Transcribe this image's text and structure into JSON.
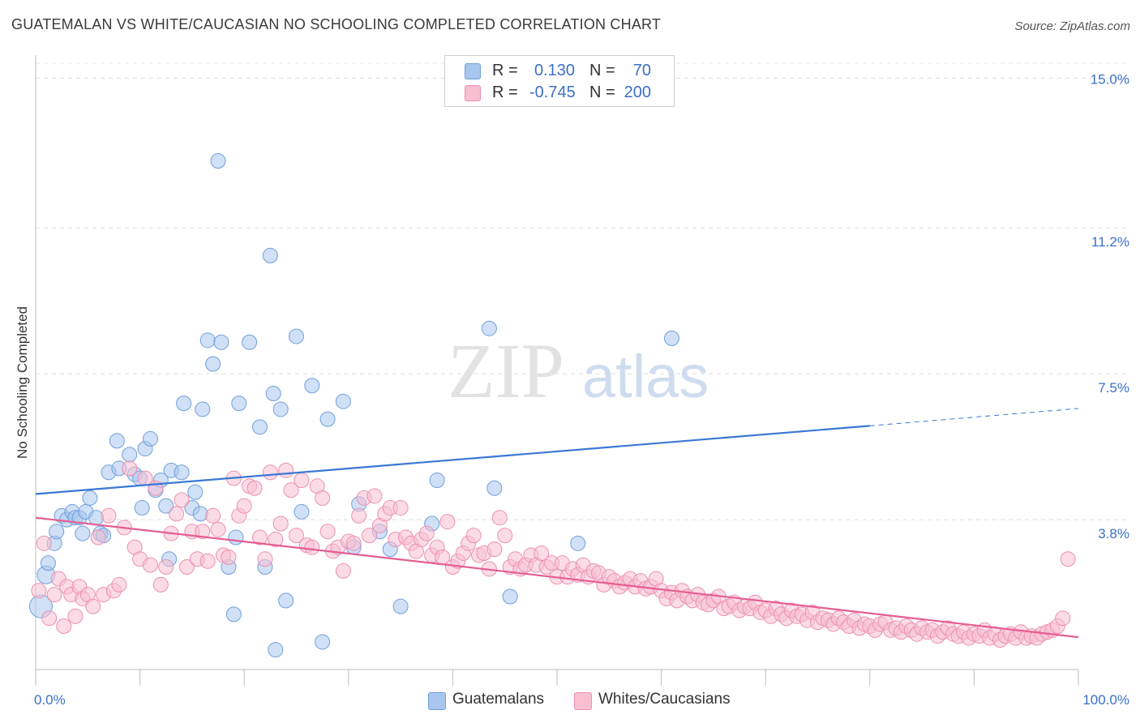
{
  "title": "GUATEMALAN VS WHITE/CAUCASIAN NO SCHOOLING COMPLETED CORRELATION CHART",
  "source": "Source: ZipAtlas.com",
  "watermark": {
    "zip": "ZIP",
    "atlas": "atlas"
  },
  "legend": {
    "rows": [
      {
        "r_label": "R =",
        "r_value": "0.130",
        "n_label": "N =",
        "n_value": "70",
        "color": "#a9c6ef",
        "border": "#6f9fdc"
      },
      {
        "r_label": "R =",
        "r_value": "-0.745",
        "n_label": "N =",
        "n_value": "200",
        "color": "#f8bfd1",
        "border": "#ec8fb0"
      }
    ]
  },
  "bottom_legend": [
    {
      "label": "Guatemalans",
      "color": "#a9c6ef",
      "border": "#6f9fdc"
    },
    {
      "label": "Whites/Caucasians",
      "color": "#f8bfd1",
      "border": "#ec8fb0"
    }
  ],
  "chart_data": {
    "type": "scatter",
    "title": "GUATEMALAN VS WHITE/CAUCASIAN NO SCHOOLING COMPLETED CORRELATION CHART",
    "xlabel": "",
    "ylabel": "No Schooling Completed",
    "xlim": [
      0,
      100
    ],
    "ylim": [
      0,
      15.5
    ],
    "x_tick_labels": [
      "0.0%",
      "100.0%"
    ],
    "y_ticks": [
      3.8,
      7.5,
      11.2,
      15.0
    ],
    "y_tick_labels": [
      "3.8%",
      "7.5%",
      "11.2%",
      "15.0%"
    ],
    "grid": true,
    "legend_position": "top-center",
    "series": [
      {
        "name": "Guatemalans",
        "color": "#a9c6ef",
        "stroke": "#6f9fdc",
        "line_color": "#3a78d4",
        "trend": {
          "x0": 0,
          "y0": 4.45,
          "x1": 80,
          "y1": 6.18,
          "dash_to_x": 100,
          "dash_to_y": 6.62
        },
        "points": [
          [
            0.5,
            1.6
          ],
          [
            1,
            2.4
          ],
          [
            1.2,
            2.7
          ],
          [
            1.8,
            3.2
          ],
          [
            2,
            3.5
          ],
          [
            2.5,
            3.9
          ],
          [
            3,
            3.8
          ],
          [
            3.5,
            4.0
          ],
          [
            3.8,
            3.85
          ],
          [
            4.2,
            3.85
          ],
          [
            4.5,
            3.45
          ],
          [
            4.8,
            4.0
          ],
          [
            5.2,
            4.35
          ],
          [
            5.8,
            3.85
          ],
          [
            6.2,
            3.45
          ],
          [
            6.5,
            3.4
          ],
          [
            7,
            5.0
          ],
          [
            7.8,
            5.8
          ],
          [
            8,
            5.1
          ],
          [
            9,
            5.45
          ],
          [
            9.5,
            4.95
          ],
          [
            10,
            4.85
          ],
          [
            10.2,
            4.1
          ],
          [
            10.5,
            5.6
          ],
          [
            11,
            5.85
          ],
          [
            11.5,
            4.55
          ],
          [
            12,
            4.8
          ],
          [
            12.5,
            4.15
          ],
          [
            12.8,
            2.8
          ],
          [
            13,
            5.05
          ],
          [
            14,
            5.0
          ],
          [
            14.2,
            6.75
          ],
          [
            15,
            4.1
          ],
          [
            15.3,
            4.5
          ],
          [
            15.8,
            3.95
          ],
          [
            16,
            6.6
          ],
          [
            16.5,
            8.35
          ],
          [
            17,
            7.75
          ],
          [
            17.5,
            12.9
          ],
          [
            17.8,
            8.3
          ],
          [
            18.5,
            2.6
          ],
          [
            19,
            1.4
          ],
          [
            19.2,
            3.35
          ],
          [
            19.5,
            6.75
          ],
          [
            20.5,
            8.3
          ],
          [
            21.5,
            6.15
          ],
          [
            22,
            2.6
          ],
          [
            22.5,
            10.5
          ],
          [
            22.8,
            7.0
          ],
          [
            23,
            0.5
          ],
          [
            23.5,
            6.6
          ],
          [
            24,
            1.75
          ],
          [
            25,
            8.45
          ],
          [
            25.5,
            4.0
          ],
          [
            26.5,
            7.2
          ],
          [
            27.5,
            0.7
          ],
          [
            28,
            6.35
          ],
          [
            29.5,
            6.8
          ],
          [
            30.5,
            3.1
          ],
          [
            31,
            4.2
          ],
          [
            33,
            3.5
          ],
          [
            34,
            3.05
          ],
          [
            35,
            1.6
          ],
          [
            38,
            3.7
          ],
          [
            38.5,
            4.8
          ],
          [
            43.5,
            8.65
          ],
          [
            44,
            4.6
          ],
          [
            45.5,
            1.85
          ],
          [
            52,
            3.2
          ],
          [
            61,
            8.4
          ]
        ]
      },
      {
        "name": "Whites/Caucasians",
        "color": "#f8bfd1",
        "stroke": "#ec8fb0",
        "line_color": "#e55d92",
        "trend": {
          "x0": 0,
          "y0": 3.85,
          "x1": 100,
          "y1": 0.82
        },
        "points": [
          [
            0.3,
            2.0
          ],
          [
            0.8,
            3.2
          ],
          [
            1.3,
            1.3
          ],
          [
            1.8,
            1.9
          ],
          [
            2.2,
            2.3
          ],
          [
            2.7,
            1.1
          ],
          [
            3,
            2.1
          ],
          [
            3.4,
            1.9
          ],
          [
            3.8,
            1.35
          ],
          [
            4.2,
            2.1
          ],
          [
            4.5,
            1.8
          ],
          [
            5,
            1.9
          ],
          [
            5.5,
            1.6
          ],
          [
            6,
            3.35
          ],
          [
            6.5,
            1.9
          ],
          [
            7,
            3.9
          ],
          [
            7.5,
            2.0
          ],
          [
            8,
            2.15
          ],
          [
            8.5,
            3.6
          ],
          [
            9,
            5.1
          ],
          [
            9.5,
            3.1
          ],
          [
            10,
            2.8
          ],
          [
            10.5,
            4.85
          ],
          [
            11,
            2.65
          ],
          [
            11.5,
            4.6
          ],
          [
            12,
            2.15
          ],
          [
            12.5,
            2.6
          ],
          [
            13,
            3.45
          ],
          [
            13.5,
            3.95
          ],
          [
            14,
            4.3
          ],
          [
            14.5,
            2.6
          ],
          [
            15,
            3.5
          ],
          [
            15.5,
            2.8
          ],
          [
            16,
            3.5
          ],
          [
            16.5,
            2.75
          ],
          [
            17,
            3.9
          ],
          [
            17.5,
            3.55
          ],
          [
            18,
            2.9
          ],
          [
            18.5,
            2.85
          ],
          [
            19,
            4.85
          ],
          [
            19.5,
            3.9
          ],
          [
            20,
            4.15
          ],
          [
            20.5,
            4.65
          ],
          [
            21,
            4.6
          ],
          [
            21.5,
            3.35
          ],
          [
            22,
            2.8
          ],
          [
            22.5,
            5.0
          ],
          [
            23,
            3.3
          ],
          [
            23.5,
            3.7
          ],
          [
            24,
            5.05
          ],
          [
            24.5,
            4.55
          ],
          [
            25,
            3.4
          ],
          [
            25.5,
            4.8
          ],
          [
            26,
            3.15
          ],
          [
            26.5,
            3.1
          ],
          [
            27,
            4.65
          ],
          [
            27.5,
            4.35
          ],
          [
            28,
            3.5
          ],
          [
            28.5,
            3.0
          ],
          [
            29,
            3.1
          ],
          [
            29.5,
            2.5
          ],
          [
            30,
            3.25
          ],
          [
            30.5,
            3.2
          ],
          [
            31,
            3.9
          ],
          [
            31.5,
            4.35
          ],
          [
            32,
            3.4
          ],
          [
            32.5,
            4.4
          ],
          [
            33,
            3.65
          ],
          [
            33.5,
            3.95
          ],
          [
            34,
            4.1
          ],
          [
            34.5,
            3.3
          ],
          [
            35,
            4.1
          ],
          [
            35.5,
            3.35
          ],
          [
            36,
            3.2
          ],
          [
            36.5,
            3.0
          ],
          [
            37,
            3.3
          ],
          [
            37.5,
            3.45
          ],
          [
            38,
            2.9
          ],
          [
            38.5,
            3.1
          ],
          [
            39,
            2.85
          ],
          [
            39.5,
            3.75
          ],
          [
            40,
            2.6
          ],
          [
            40.5,
            2.75
          ],
          [
            41,
            2.95
          ],
          [
            41.5,
            3.2
          ],
          [
            42,
            3.4
          ],
          [
            42.5,
            2.9
          ],
          [
            43,
            2.95
          ],
          [
            43.5,
            2.55
          ],
          [
            44,
            3.05
          ],
          [
            44.5,
            3.85
          ],
          [
            45,
            3.4
          ],
          [
            45.5,
            2.6
          ],
          [
            46,
            2.8
          ],
          [
            46.5,
            2.55
          ],
          [
            47,
            2.65
          ],
          [
            47.5,
            2.9
          ],
          [
            48,
            2.65
          ],
          [
            48.5,
            2.95
          ],
          [
            49,
            2.6
          ],
          [
            49.5,
            2.7
          ],
          [
            50,
            2.35
          ],
          [
            50.5,
            2.7
          ],
          [
            51,
            2.35
          ],
          [
            51.5,
            2.55
          ],
          [
            52,
            2.4
          ],
          [
            52.5,
            2.65
          ],
          [
            53,
            2.35
          ],
          [
            53.5,
            2.5
          ],
          [
            54,
            2.45
          ],
          [
            54.5,
            2.15
          ],
          [
            55,
            2.35
          ],
          [
            55.5,
            2.25
          ],
          [
            56,
            2.1
          ],
          [
            56.5,
            2.2
          ],
          [
            57,
            2.3
          ],
          [
            57.5,
            2.1
          ],
          [
            58,
            2.25
          ],
          [
            58.5,
            2.05
          ],
          [
            59,
            2.1
          ],
          [
            59.5,
            2.3
          ],
          [
            60,
            2.0
          ],
          [
            60.5,
            1.8
          ],
          [
            61,
            1.95
          ],
          [
            61.5,
            1.75
          ],
          [
            62,
            2.0
          ],
          [
            62.5,
            1.85
          ],
          [
            63,
            1.75
          ],
          [
            63.5,
            1.9
          ],
          [
            64,
            1.7
          ],
          [
            64.5,
            1.65
          ],
          [
            65,
            1.75
          ],
          [
            65.5,
            1.85
          ],
          [
            66,
            1.55
          ],
          [
            66.5,
            1.6
          ],
          [
            67,
            1.7
          ],
          [
            67.5,
            1.5
          ],
          [
            68,
            1.6
          ],
          [
            68.5,
            1.55
          ],
          [
            69,
            1.7
          ],
          [
            69.5,
            1.45
          ],
          [
            70,
            1.5
          ],
          [
            70.5,
            1.35
          ],
          [
            71,
            1.55
          ],
          [
            71.5,
            1.4
          ],
          [
            72,
            1.3
          ],
          [
            72.5,
            1.5
          ],
          [
            73,
            1.35
          ],
          [
            73.5,
            1.4
          ],
          [
            74,
            1.25
          ],
          [
            74.5,
            1.45
          ],
          [
            75,
            1.2
          ],
          [
            75.5,
            1.3
          ],
          [
            76,
            1.25
          ],
          [
            76.5,
            1.15
          ],
          [
            77,
            1.3
          ],
          [
            77.5,
            1.2
          ],
          [
            78,
            1.1
          ],
          [
            78.5,
            1.25
          ],
          [
            79,
            1.05
          ],
          [
            79.5,
            1.15
          ],
          [
            80,
            1.1
          ],
          [
            80.5,
            1.0
          ],
          [
            81,
            1.15
          ],
          [
            81.5,
            1.2
          ],
          [
            82,
            1.0
          ],
          [
            82.5,
            1.05
          ],
          [
            83,
            0.95
          ],
          [
            83.5,
            1.1
          ],
          [
            84,
            1.0
          ],
          [
            84.5,
            0.9
          ],
          [
            85,
            1.05
          ],
          [
            85.5,
            0.95
          ],
          [
            86,
            1.0
          ],
          [
            86.5,
            0.85
          ],
          [
            87,
            0.95
          ],
          [
            87.5,
            1.05
          ],
          [
            88,
            0.9
          ],
          [
            88.5,
            0.85
          ],
          [
            89,
            0.95
          ],
          [
            89.5,
            0.8
          ],
          [
            90,
            0.9
          ],
          [
            90.5,
            0.85
          ],
          [
            91,
            1.0
          ],
          [
            91.5,
            0.8
          ],
          [
            92,
            0.9
          ],
          [
            92.5,
            0.75
          ],
          [
            93,
            0.85
          ],
          [
            93.5,
            0.9
          ],
          [
            94,
            0.8
          ],
          [
            94.5,
            0.95
          ],
          [
            95,
            0.8
          ],
          [
            95.5,
            0.85
          ],
          [
            96,
            0.8
          ],
          [
            96.5,
            0.9
          ],
          [
            97,
            0.95
          ],
          [
            97.5,
            1.0
          ],
          [
            98,
            1.1
          ],
          [
            98.5,
            1.3
          ],
          [
            99,
            2.8
          ]
        ]
      }
    ]
  }
}
